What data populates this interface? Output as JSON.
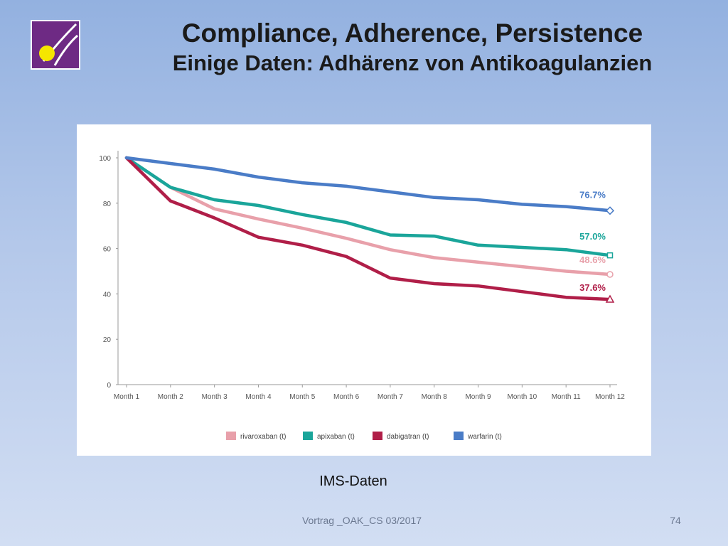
{
  "slide": {
    "title": "Compliance, Adherence, Persistence",
    "subtitle": "Einige Daten: Adhärenz von Antikoagulanzien",
    "caption": "IMS-Daten",
    "footer": "Vortrag _OAK_CS 03/2017",
    "page_number": "74"
  },
  "logo": {
    "icon": "logo-icon",
    "background_color": "#6e2a84",
    "dot_color": "#f5e600"
  },
  "chart_data": {
    "type": "line",
    "title": "",
    "xlabel": "",
    "ylabel": "",
    "ylim": [
      0,
      100
    ],
    "yticks": [
      0,
      20,
      40,
      60,
      80,
      100
    ],
    "categories": [
      "Month 1",
      "Month 2",
      "Month 3",
      "Month 4",
      "Month 5",
      "Month 6",
      "Month 7",
      "Month 8",
      "Month 9",
      "Month 10",
      "Month 11",
      "Month 12"
    ],
    "grid": false,
    "legend_position": "bottom",
    "series": [
      {
        "name": "rivaroxaban (t)",
        "color": "#e8a0aa",
        "marker": "circle",
        "end_label": "48.6%",
        "values": [
          100,
          87,
          77.5,
          73,
          69,
          64.5,
          59.5,
          56,
          54,
          52,
          50,
          48.6
        ]
      },
      {
        "name": "apixaban (t)",
        "color": "#1aa59a",
        "marker": "square",
        "end_label": "57.0%",
        "values": [
          100,
          87,
          81.5,
          79,
          75,
          71.5,
          66,
          65.5,
          61.5,
          60.5,
          59.5,
          57.0
        ]
      },
      {
        "name": "dabigatran (t)",
        "color": "#b01e48",
        "marker": "triangle",
        "end_label": "37.6%",
        "values": [
          100,
          81,
          73.5,
          65,
          61.5,
          56.5,
          47,
          44.5,
          43.5,
          41,
          38.5,
          37.6
        ]
      },
      {
        "name": "warfarin (t)",
        "color": "#4a7cc7",
        "marker": "diamond",
        "end_label": "76.7%",
        "values": [
          100,
          97.5,
          95,
          91.5,
          89,
          87.5,
          85,
          82.5,
          81.5,
          79.5,
          78.5,
          76.7
        ]
      }
    ]
  }
}
